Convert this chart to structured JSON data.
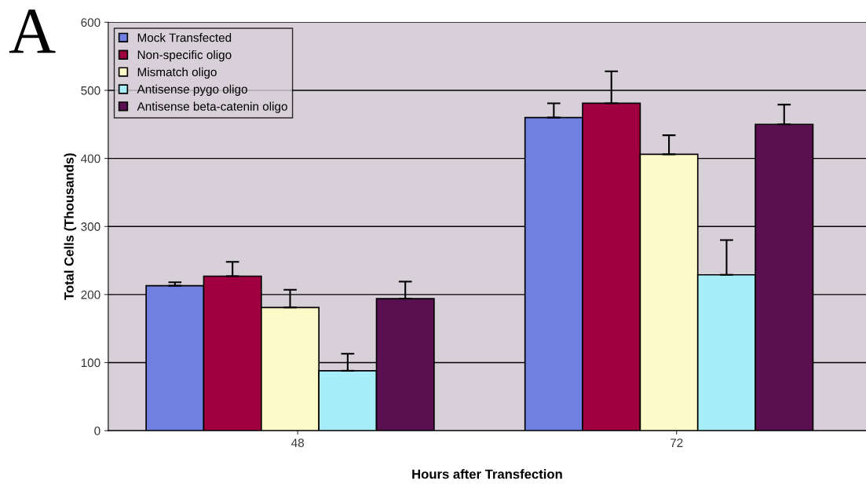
{
  "chart_data": {
    "type": "bar",
    "xlabel": "Hours after Transfection",
    "ylabel": "Total Cells (Thousands)",
    "annotations": [
      "A"
    ],
    "categories": [
      "48",
      "72"
    ],
    "series": [
      {
        "name": "Mock Transfected",
        "color": "#6f80e0",
        "values": [
          213,
          460
        ],
        "errors": [
          [
            213,
            218
          ],
          [
            460,
            481
          ]
        ]
      },
      {
        "name": "Non-specific oligo",
        "color": "#a00040",
        "values": [
          227,
          481
        ],
        "errors": [
          [
            227,
            248
          ],
          [
            481,
            528
          ]
        ]
      },
      {
        "name": "Mismatch oligo",
        "color": "#fcfac8",
        "values": [
          181,
          406
        ],
        "errors": [
          [
            181,
            207
          ],
          [
            406,
            434
          ]
        ]
      },
      {
        "name": "Antisense pygo oligo",
        "color": "#a8eef8",
        "values": [
          88,
          229
        ],
        "errors": [
          [
            88,
            113
          ],
          [
            229,
            280
          ]
        ]
      },
      {
        "name": "Antisense beta-catenin oligo",
        "color": "#5a1050",
        "values": [
          194,
          450
        ],
        "errors": [
          [
            194,
            219
          ],
          [
            450,
            479
          ]
        ]
      }
    ],
    "ylim": [
      0,
      600
    ],
    "yticks": [
      0,
      100,
      200,
      300,
      400,
      500,
      600
    ],
    "grid": "y",
    "legend": "top left"
  }
}
